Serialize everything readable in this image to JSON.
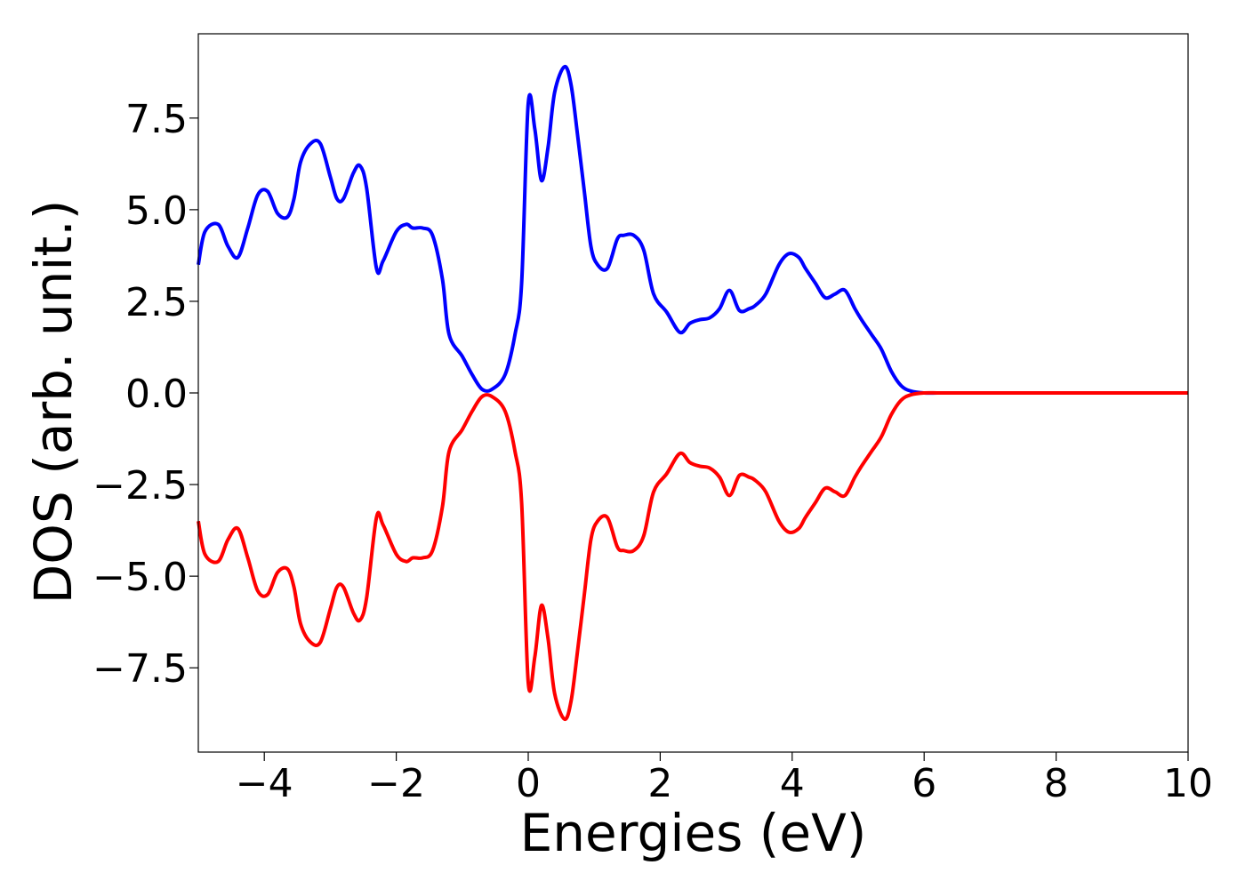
{
  "chart_data": {
    "type": "line",
    "title": "",
    "xlabel": "Energies (eV)",
    "ylabel": "DOS (arb. unit.)",
    "xlim": [
      -5,
      10
    ],
    "ylim": [
      -9.8,
      9.8
    ],
    "xticks": [
      -4,
      -2,
      0,
      2,
      4,
      6,
      8,
      10
    ],
    "xtick_labels": [
      "−4",
      "−2",
      "0",
      "2",
      "4",
      "6",
      "8",
      "10"
    ],
    "yticks": [
      7.5,
      5.0,
      2.5,
      0.0,
      -2.5,
      -5.0,
      -7.5
    ],
    "ytick_labels": [
      "7.5",
      "5.0",
      "2.5",
      "0.0",
      "−2.5",
      "−5.0",
      "−7.5"
    ],
    "grid": false,
    "legend": "none",
    "series": [
      {
        "color": "#0000ff",
        "x": [
          -5.0,
          -4.9,
          -4.7,
          -4.55,
          -4.4,
          -4.25,
          -4.1,
          -3.95,
          -3.8,
          -3.65,
          -3.55,
          -3.45,
          -3.3,
          -3.15,
          -3.0,
          -2.9,
          -2.8,
          -2.65,
          -2.55,
          -2.45,
          -2.3,
          -2.2,
          -2.0,
          -1.85,
          -1.75,
          -1.6,
          -1.45,
          -1.3,
          -1.2,
          -1.0,
          -0.85,
          -0.7,
          -0.55,
          -0.35,
          -0.2,
          -0.1,
          0.0,
          0.1,
          0.2,
          0.3,
          0.4,
          0.55,
          0.65,
          0.75,
          0.85,
          0.95,
          1.05,
          1.2,
          1.35,
          1.45,
          1.6,
          1.75,
          1.9,
          2.1,
          2.3,
          2.45,
          2.6,
          2.75,
          2.9,
          3.05,
          3.2,
          3.35,
          3.45,
          3.6,
          3.8,
          3.95,
          4.1,
          4.2,
          4.35,
          4.5,
          4.65,
          4.8,
          4.95,
          5.05,
          5.2,
          5.35,
          5.5,
          5.65,
          5.8,
          6.0,
          6.2,
          6.4,
          6.55,
          6.7,
          6.8,
          6.9,
          7.1,
          7.3,
          7.5,
          7.7,
          7.85,
          8.0,
          8.5,
          9.0,
          10.0
        ],
        "y": [
          3.5,
          4.4,
          4.6,
          4.0,
          3.7,
          4.5,
          5.4,
          5.5,
          4.9,
          4.8,
          5.3,
          6.3,
          6.8,
          6.8,
          5.9,
          5.3,
          5.3,
          6.0,
          6.2,
          5.6,
          3.4,
          3.6,
          4.4,
          4.6,
          4.5,
          4.5,
          4.3,
          3.1,
          1.6,
          1.0,
          0.5,
          0.1,
          0.1,
          0.5,
          1.6,
          3.0,
          7.9,
          7.2,
          5.8,
          6.7,
          8.2,
          8.9,
          8.4,
          7.0,
          5.5,
          4.0,
          3.5,
          3.4,
          4.2,
          4.3,
          4.3,
          3.9,
          2.7,
          2.2,
          1.65,
          1.9,
          2.0,
          2.05,
          2.3,
          2.8,
          2.25,
          2.3,
          2.4,
          2.7,
          3.5,
          3.8,
          3.7,
          3.4,
          3.0,
          2.6,
          2.7,
          2.8,
          2.3,
          2.0,
          1.6,
          1.2,
          0.6,
          0.2,
          0.05,
          0.0,
          0.0,
          0.0,
          0.0,
          0.0,
          0.0,
          0.0,
          0.0,
          0.0,
          0.0,
          0.0,
          0.0,
          0.0,
          0.0,
          0.0,
          0.0
        ]
      },
      {
        "color": "#ff0000",
        "x": [
          -5.0,
          -4.9,
          -4.7,
          -4.55,
          -4.4,
          -4.25,
          -4.1,
          -3.95,
          -3.8,
          -3.65,
          -3.55,
          -3.45,
          -3.3,
          -3.15,
          -3.0,
          -2.9,
          -2.8,
          -2.65,
          -2.55,
          -2.45,
          -2.3,
          -2.2,
          -2.0,
          -1.85,
          -1.75,
          -1.6,
          -1.45,
          -1.3,
          -1.2,
          -1.0,
          -0.85,
          -0.7,
          -0.55,
          -0.35,
          -0.2,
          -0.1,
          0.0,
          0.1,
          0.2,
          0.3,
          0.4,
          0.55,
          0.65,
          0.75,
          0.85,
          0.95,
          1.05,
          1.2,
          1.35,
          1.45,
          1.6,
          1.75,
          1.9,
          2.1,
          2.3,
          2.45,
          2.6,
          2.75,
          2.9,
          3.05,
          3.2,
          3.35,
          3.45,
          3.6,
          3.8,
          3.95,
          4.1,
          4.2,
          4.35,
          4.5,
          4.65,
          4.8,
          4.95,
          5.05,
          5.2,
          5.35,
          5.5,
          5.65,
          5.8,
          6.0,
          6.2,
          6.4,
          6.55,
          6.7,
          6.8,
          6.9,
          7.1,
          7.3,
          7.5,
          7.7,
          7.85,
          8.0,
          8.5,
          9.0,
          10.0
        ],
        "y": [
          -3.5,
          -4.4,
          -4.6,
          -4.0,
          -3.7,
          -4.5,
          -5.4,
          -5.5,
          -4.9,
          -4.8,
          -5.3,
          -6.3,
          -6.8,
          -6.8,
          -5.9,
          -5.3,
          -5.3,
          -6.0,
          -6.2,
          -5.6,
          -3.4,
          -3.6,
          -4.4,
          -4.6,
          -4.5,
          -4.5,
          -4.3,
          -3.1,
          -1.6,
          -1.0,
          -0.5,
          -0.1,
          -0.1,
          -0.5,
          -1.6,
          -3.0,
          -7.9,
          -7.2,
          -5.8,
          -6.7,
          -8.2,
          -8.9,
          -8.4,
          -7.0,
          -5.5,
          -4.0,
          -3.5,
          -3.4,
          -4.2,
          -4.3,
          -4.3,
          -3.9,
          -2.7,
          -2.2,
          -1.65,
          -1.9,
          -2.0,
          -2.05,
          -2.3,
          -2.8,
          -2.25,
          -2.3,
          -2.4,
          -2.7,
          -3.5,
          -3.8,
          -3.7,
          -3.4,
          -3.0,
          -2.6,
          -2.7,
          -2.8,
          -2.3,
          -2.0,
          -1.6,
          -1.2,
          -0.6,
          -0.2,
          -0.05,
          0.0,
          0.0,
          0.0,
          0.0,
          0.0,
          0.0,
          0.0,
          0.0,
          0.0,
          0.0,
          0.0,
          0.0,
          0.0,
          0.0,
          0.0,
          0.0
        ]
      }
    ]
  }
}
